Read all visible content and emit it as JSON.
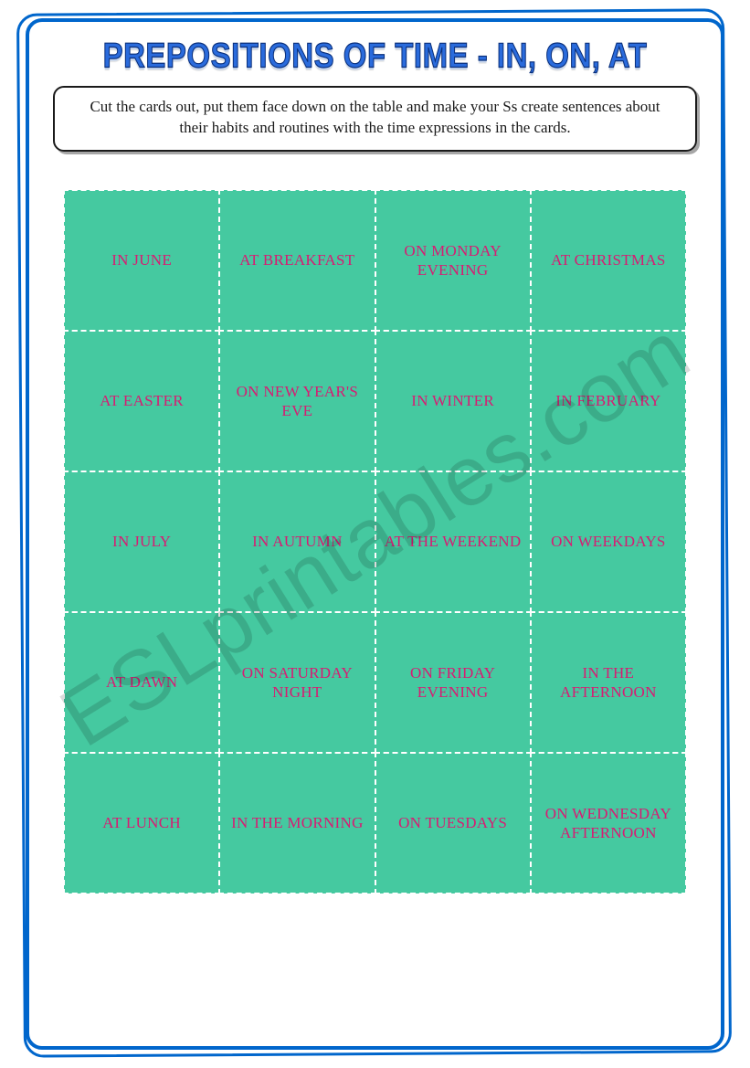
{
  "title": "PREPOSITIONS OF TIME - IN, ON, AT",
  "instructions": "Cut the cards out, put them face down on the table and make your Ss create sentences about their habits and routines with the time expressions in the cards.",
  "watermark": "ESLprintables.com",
  "colors": {
    "frame": "#0066cc",
    "title_fill": "#2a6bdc",
    "title_stroke": "#0a2f7a",
    "card_bg": "#45c9a0",
    "card_text": "#d81b73",
    "card_border": "#ffffff",
    "instructions_border": "#1a1a1a",
    "body_text": "#1a1a1a"
  },
  "grid": {
    "cols": 4,
    "rows": 5,
    "card_font_size": 17
  },
  "cards": [
    "IN JUNE",
    "AT BREAKFAST",
    "ON MONDAY EVENING",
    "AT CHRISTMAS",
    "AT EASTER",
    "ON NEW YEAR'S EVE",
    "IN WINTER",
    "IN FEBRUARY",
    "IN JULY",
    "IN AUTUMN",
    "AT THE WEEKEND",
    "ON WEEKDAYS",
    "AT DAWN",
    "ON SATURDAY NIGHT",
    "ON FRIDAY EVENING",
    "IN THE AFTERNOON",
    "AT LUNCH",
    "IN THE MORNING",
    "ON TUESDAYS",
    "ON WEDNESDAY AFTERNOON"
  ]
}
